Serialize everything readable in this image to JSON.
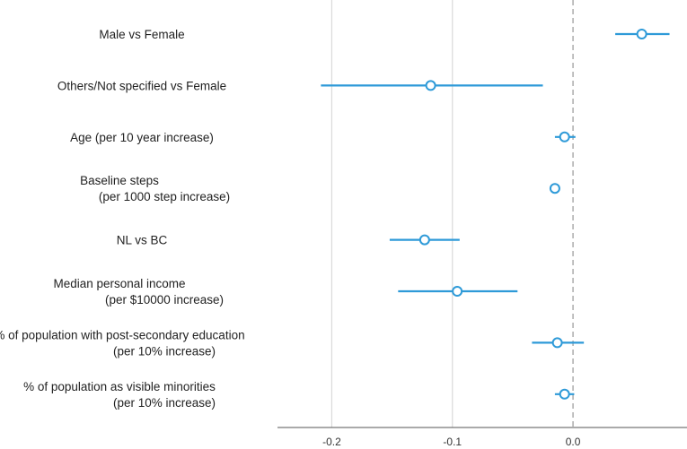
{
  "chart_data": {
    "type": "forest",
    "title": "",
    "xlabel": "",
    "ylabel": "",
    "xlim": [
      -0.245,
      0.0945
    ],
    "x_ticks": [
      -0.2,
      -0.1,
      0.0
    ],
    "x_tick_labels": [
      "-0.2",
      "-0.1",
      "0.0"
    ],
    "reference_line": 0.0,
    "grid": "vertical",
    "colors": {
      "marker": "#2e9ad8",
      "grid": "#d9d9d9",
      "reference": "#999999",
      "axis": "#555555"
    },
    "rows": [
      {
        "label_lines": [
          "Male vs Female"
        ],
        "estimate": 0.057,
        "ci_low": 0.035,
        "ci_high": 0.08
      },
      {
        "label_lines": [
          "Others/Not specified vs Female"
        ],
        "estimate": -0.118,
        "ci_low": -0.209,
        "ci_high": -0.025
      },
      {
        "label_lines": [
          "Age (per 10 year increase)"
        ],
        "estimate": -0.007,
        "ci_low": -0.015,
        "ci_high": 0.002
      },
      {
        "label_lines": [
          "Baseline steps",
          "(per 1000 step increase)"
        ],
        "estimate": -0.015,
        "ci_low": -0.017,
        "ci_high": -0.013
      },
      {
        "label_lines": [
          "NL vs BC"
        ],
        "estimate": -0.123,
        "ci_low": -0.152,
        "ci_high": -0.094
      },
      {
        "label_lines": [
          "Median personal income",
          "(per $10000 increase)"
        ],
        "estimate": -0.096,
        "ci_low": -0.145,
        "ci_high": -0.046
      },
      {
        "label_lines": [
          "% of population with post-secondary education",
          "(per 10% increase)"
        ],
        "estimate": -0.013,
        "ci_low": -0.034,
        "ci_high": 0.009
      },
      {
        "label_lines": [
          "% of population as visible minorities",
          "(per 10% increase)"
        ],
        "estimate": -0.007,
        "ci_low": -0.015,
        "ci_high": 0.001
      }
    ]
  }
}
